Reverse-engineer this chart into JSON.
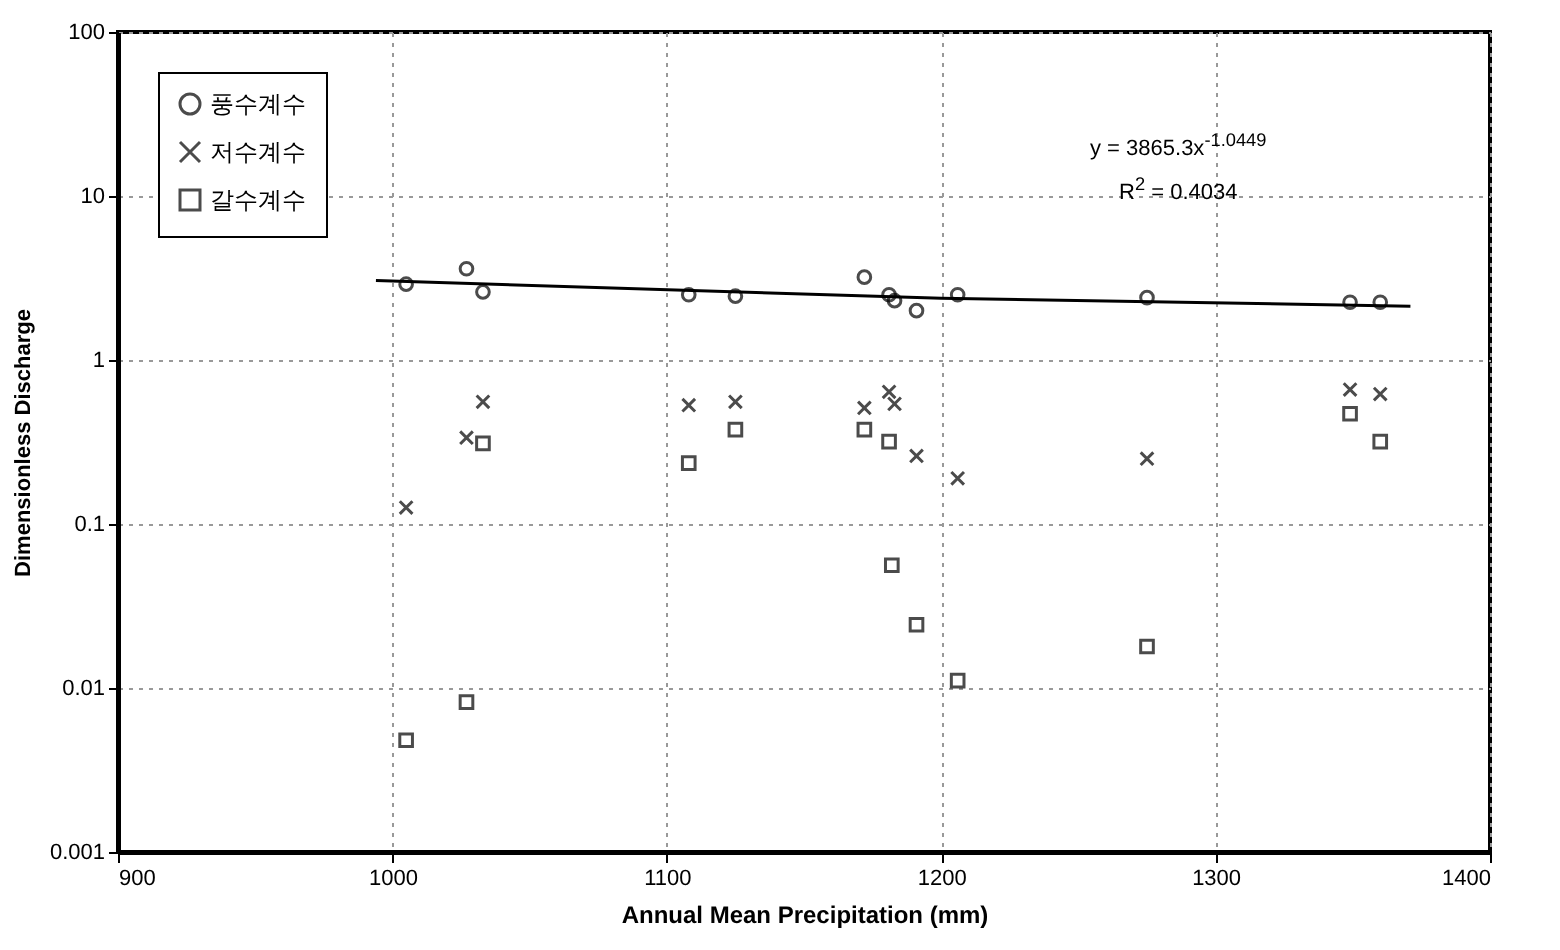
{
  "chart_data": {
    "type": "scatter",
    "xlabel": "Annual Mean Precipitation (mm)",
    "ylabel": "Dimensionless Discharge",
    "xlim": [
      900,
      1400
    ],
    "xticks": [
      900,
      1000,
      1100,
      1200,
      1300,
      1400
    ],
    "ylim": [
      0.001,
      100
    ],
    "yticks": [
      0.001,
      0.01,
      0.1,
      1,
      10,
      100
    ],
    "log": "y",
    "grid": true,
    "legend": "top left",
    "x": [
      1005,
      1027,
      1033,
      1108,
      1125,
      1172,
      1181,
      1183,
      1191,
      1206,
      1275,
      1349,
      1360
    ],
    "series": [
      {
        "name": "풍수계수",
        "color": "#000000",
        "marker": "circle",
        "values": [
          2.9,
          3.6,
          2.6,
          2.5,
          2.45,
          3.2,
          2.5,
          2.3,
          2.0,
          2.5,
          2.4,
          2.25,
          2.25
        ]
      },
      {
        "name": "저수계수",
        "color": "#000000",
        "marker": "cross",
        "values": [
          0.126,
          0.336,
          0.556,
          0.53,
          0.556,
          0.51,
          0.64,
          0.54,
          0.26,
          0.19,
          0.25,
          0.66,
          0.62
        ]
      },
      {
        "name": "갈수계수",
        "color": "#000000",
        "marker": "square",
        "x": [
          1005,
          1027,
          1033,
          1108,
          1125,
          1172,
          1181,
          1182,
          1191,
          1206,
          1275,
          1349,
          1360
        ],
        "values": [
          0.0048,
          0.0082,
          0.31,
          0.235,
          0.376,
          0.376,
          0.318,
          0.056,
          0.0243,
          0.0111,
          0.0179,
          0.47,
          0.318
        ]
      },
      {
        "type": "line",
        "color": "#000000",
        "line_style": "solid",
        "x": [
          994,
          1200,
          1371
        ],
        "values": [
          3.05,
          2.38,
          2.13
        ]
      }
    ],
    "annotations": [
      "y = 3865.3x$^{-1.0449}$",
      "R$^{2}$ = 0.4034"
    ]
  }
}
